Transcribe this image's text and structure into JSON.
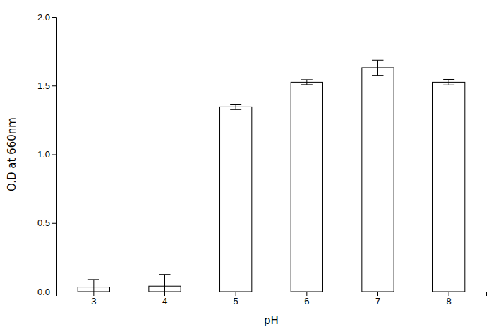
{
  "chart_data": {
    "type": "bar",
    "categories": [
      "3",
      "4",
      "5",
      "6",
      "7",
      "8"
    ],
    "values": [
      0.033,
      0.04,
      1.345,
      1.525,
      1.63,
      1.525
    ],
    "errors": [
      0.055,
      0.085,
      0.02,
      0.018,
      0.055,
      0.02
    ],
    "color": "#ffffff",
    "x_label": "pH",
    "y_label": "O.D at 660nm",
    "ylim": [
      0.0,
      2.0
    ],
    "yticks": [
      {
        "value": 0,
        "label": "0.0"
      },
      0.5,
      {
        "value": 1,
        "label": "1.0"
      },
      1.5,
      {
        "value": 2,
        "label": "2.0"
      }
    ],
    "grid": false
  }
}
